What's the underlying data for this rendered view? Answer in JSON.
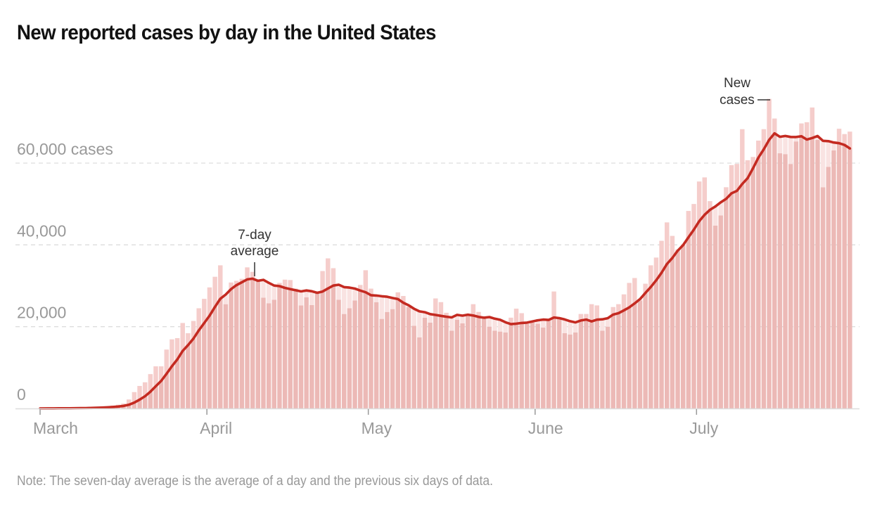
{
  "title": "New reported cases by day in the United States",
  "note": "Note: The seven-day average is the average of a day and the previous six days of data.",
  "colors": {
    "bar": "#ecb9b6",
    "bar_above_line": "#f5cdcb",
    "area": "#f9e3e2",
    "line": "#c42a21",
    "grid": "#dddddd",
    "axis_text": "#999999",
    "annotation_text": "#333333"
  },
  "chart_data": {
    "type": "bar",
    "title": "New reported cases by day in the United States",
    "xlabel": "",
    "ylabel": "cases",
    "ylim": [
      0,
      76000
    ],
    "grid": true,
    "start_date": "March 1",
    "y_ticks": [
      {
        "value": 0,
        "label": "0"
      },
      {
        "value": 20000,
        "label": "20,000"
      },
      {
        "value": 40000,
        "label": "40,000"
      },
      {
        "value": 60000,
        "label": "60,000 cases"
      }
    ],
    "x_ticks": [
      {
        "day_index": 0,
        "label": "March"
      },
      {
        "day_index": 31,
        "label": "April"
      },
      {
        "day_index": 61,
        "label": "May"
      },
      {
        "day_index": 92,
        "label": "June"
      },
      {
        "day_index": 122,
        "label": "July"
      }
    ],
    "series": [
      {
        "name": "New cases",
        "type": "bar",
        "values": [
          20,
          20,
          30,
          40,
          60,
          80,
          100,
          130,
          180,
          250,
          320,
          420,
          530,
          700,
          900,
          1200,
          2200,
          4000,
          5500,
          6400,
          8400,
          10300,
          10300,
          14400,
          16900,
          17200,
          20900,
          18400,
          21400,
          24500,
          26800,
          29600,
          32200,
          35000,
          25500,
          30800,
          31200,
          31700,
          34500,
          33400,
          31400,
          27100,
          25700,
          26600,
          30700,
          31500,
          31400,
          29300,
          25200,
          27200,
          25300,
          28100,
          33600,
          36700,
          34300,
          26600,
          23100,
          24500,
          26400,
          30200,
          33800,
          29300,
          26000,
          21900,
          23600,
          24300,
          28400,
          27500,
          24800,
          20200,
          17400,
          22200,
          21000,
          26900,
          26000,
          23400,
          19000,
          21700,
          20800,
          22700,
          25500,
          23600,
          22100,
          20000,
          19000,
          18800,
          18600,
          22200,
          24400,
          23300,
          20700,
          21000,
          20700,
          19800,
          21600,
          28600,
          22200,
          18400,
          18100,
          18600,
          23100,
          23100,
          25500,
          25200,
          19000,
          20000,
          24800,
          25500,
          27900,
          30700,
          31900,
          26400,
          30500,
          35000,
          36900,
          41000,
          45500,
          42200,
          38900,
          40100,
          48300,
          50000,
          55500,
          56500,
          50700,
          44700,
          47200,
          54100,
          59500,
          59800,
          68300,
          60700,
          61500,
          65500,
          68300,
          75700,
          70900,
          62400,
          62200,
          59800,
          65300,
          69700,
          70000,
          73600,
          65700,
          54100,
          59100,
          63100,
          68400,
          67100,
          67700
        ]
      },
      {
        "name": "7-day average",
        "type": "line",
        "derived_from": "New cases",
        "window_days": 7
      }
    ],
    "annotations": [
      {
        "text_lines": [
          "7-day",
          "average"
        ],
        "target": "7-day average",
        "day_index": 40
      },
      {
        "text_lines": [
          "New",
          "cases"
        ],
        "target": "New cases",
        "day_index": 136
      }
    ]
  }
}
